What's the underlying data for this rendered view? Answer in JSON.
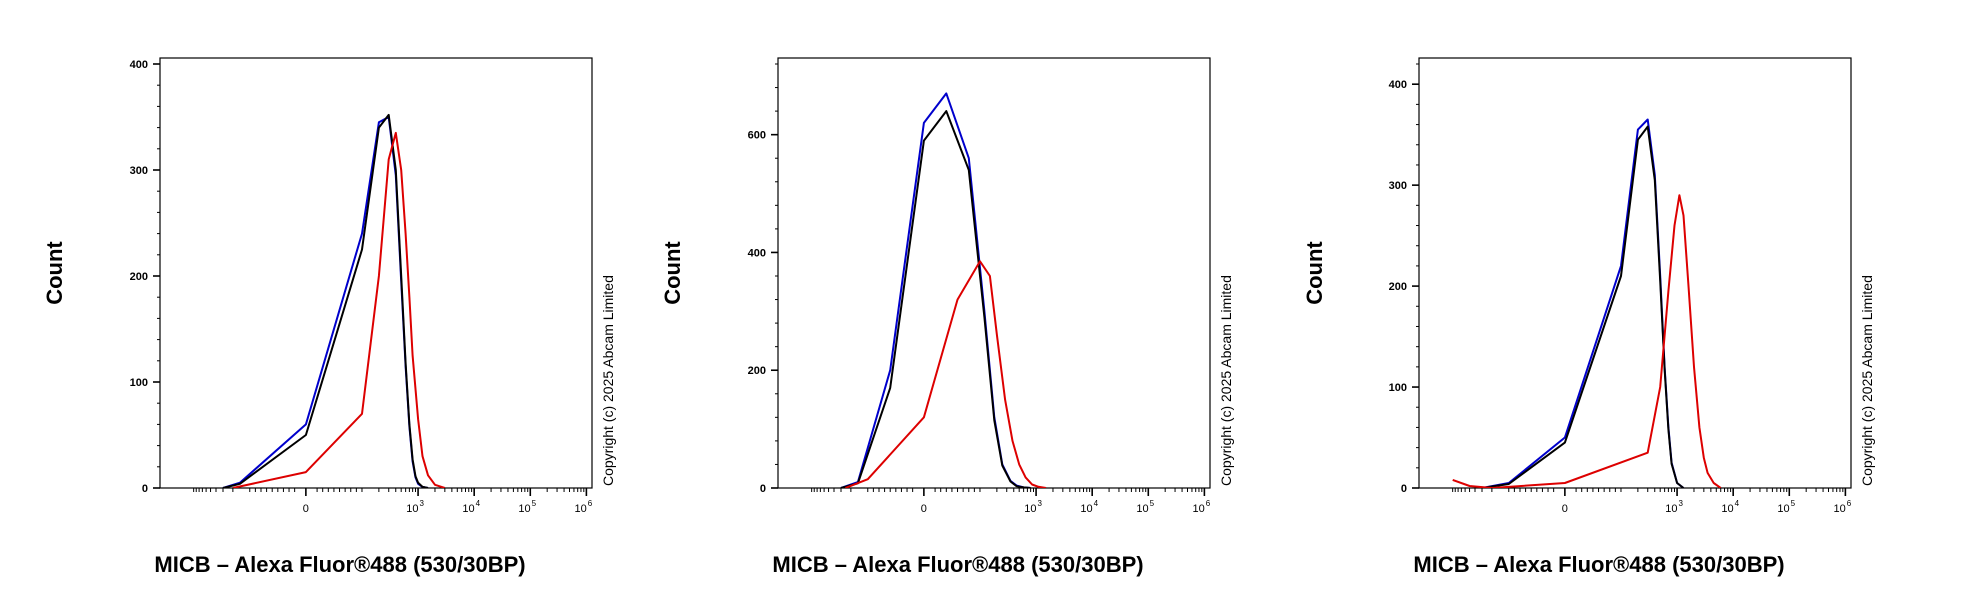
{
  "chart_data": [
    {
      "type": "line",
      "ylabel": "Count",
      "xlabel": "MICB – Alexa Fluor®488 (530/30BP)",
      "copyright": "Copyright (c) 2025 Abcam Limited",
      "x_scale": "biexponential",
      "ylim": [
        0,
        400
      ],
      "yticks": [
        {
          "value": 0,
          "label": "0"
        },
        {
          "value": 100,
          "label": "100"
        },
        {
          "value": 200,
          "label": "200"
        },
        {
          "value": 300,
          "label": "300"
        },
        {
          "value": 400,
          "label": "400"
        }
      ],
      "xticks": [
        {
          "value": 0,
          "base": "0",
          "exp": ""
        },
        {
          "value": 1000,
          "base": "10",
          "exp": "3"
        },
        {
          "value": 10000,
          "base": "10",
          "exp": "4"
        },
        {
          "value": 100000,
          "base": "10",
          "exp": "5"
        },
        {
          "value": 1000000,
          "base": "10",
          "exp": "6"
        }
      ],
      "series": [
        {
          "color": "#0000cc",
          "x": [
            -300,
            -150,
            0,
            100,
            200,
            300,
            400,
            500,
            600,
            700,
            800,
            900,
            1000,
            1200,
            1500
          ],
          "y": [
            0,
            5,
            60,
            240,
            345,
            350,
            295,
            195,
            115,
            58,
            25,
            10,
            4,
            1,
            0
          ]
        },
        {
          "color": "#000000",
          "x": [
            -300,
            -150,
            0,
            100,
            200,
            300,
            400,
            500,
            600,
            700,
            800,
            900,
            1000,
            1200,
            1500
          ],
          "y": [
            0,
            4,
            50,
            225,
            340,
            352,
            300,
            200,
            118,
            60,
            27,
            11,
            5,
            1,
            0
          ]
        },
        {
          "color": "#dd0000",
          "x": [
            -200,
            0,
            100,
            200,
            300,
            400,
            500,
            600,
            700,
            800,
            1000,
            1200,
            1500,
            2000,
            3000
          ],
          "y": [
            0,
            15,
            70,
            200,
            310,
            335,
            300,
            240,
            180,
            125,
            65,
            30,
            12,
            3,
            0
          ]
        }
      ]
    },
    {
      "type": "line",
      "ylabel": "Count",
      "xlabel": "MICB – Alexa Fluor®488 (530/30BP)",
      "copyright": "Copyright (c) 2025 Abcam Limited",
      "x_scale": "biexponential",
      "ylim": [
        0,
        720
      ],
      "yticks": [
        {
          "value": 0,
          "label": "0"
        },
        {
          "value": 200,
          "label": "200"
        },
        {
          "value": 400,
          "label": "400"
        },
        {
          "value": 600,
          "label": "600"
        }
      ],
      "xticks": [
        {
          "value": 0,
          "base": "0",
          "exp": ""
        },
        {
          "value": 1000,
          "base": "10",
          "exp": "3"
        },
        {
          "value": 10000,
          "base": "10",
          "exp": "4"
        },
        {
          "value": 100000,
          "base": "10",
          "exp": "5"
        },
        {
          "value": 1000000,
          "base": "10",
          "exp": "6"
        }
      ],
      "series": [
        {
          "color": "#0000cc",
          "x": [
            -300,
            -150,
            -60,
            0,
            40,
            80,
            120,
            180,
            250,
            350,
            450,
            600,
            800
          ],
          "y": [
            0,
            10,
            200,
            620,
            670,
            560,
            300,
            120,
            40,
            12,
            4,
            1,
            0
          ]
        },
        {
          "color": "#000000",
          "x": [
            -300,
            -150,
            -60,
            0,
            40,
            80,
            120,
            180,
            250,
            350,
            450,
            600,
            800
          ],
          "y": [
            0,
            8,
            170,
            590,
            640,
            540,
            290,
            115,
            38,
            11,
            3,
            1,
            0
          ]
        },
        {
          "color": "#dd0000",
          "x": [
            -250,
            -100,
            0,
            60,
            100,
            150,
            200,
            280,
            380,
            500,
            650,
            850,
            1100,
            1500
          ],
          "y": [
            0,
            15,
            120,
            320,
            385,
            360,
            260,
            150,
            80,
            40,
            18,
            6,
            2,
            0
          ]
        }
      ]
    },
    {
      "type": "line",
      "ylabel": "Count",
      "xlabel": "MICB – Alexa Fluor®488 (530/30BP)",
      "copyright": "Copyright (c) 2025 Abcam Limited",
      "x_scale": "biexponential",
      "ylim": [
        0,
        420
      ],
      "yticks": [
        {
          "value": 0,
          "label": "0"
        },
        {
          "value": 100,
          "label": "100"
        },
        {
          "value": 200,
          "label": "200"
        },
        {
          "value": 300,
          "label": "300"
        },
        {
          "value": 400,
          "label": "400"
        }
      ],
      "xticks": [
        {
          "value": 0,
          "base": "0",
          "exp": ""
        },
        {
          "value": 1000,
          "base": "10",
          "exp": "3"
        },
        {
          "value": 10000,
          "base": "10",
          "exp": "4"
        },
        {
          "value": 100000,
          "base": "10",
          "exp": "5"
        },
        {
          "value": 1000000,
          "base": "10",
          "exp": "6"
        }
      ],
      "series": [
        {
          "color": "#0000cc",
          "x": [
            -300,
            -100,
            0,
            100,
            200,
            300,
            400,
            500,
            600,
            700,
            800,
            1000,
            1300
          ],
          "y": [
            0,
            5,
            50,
            220,
            355,
            365,
            310,
            210,
            120,
            60,
            25,
            5,
            0
          ]
        },
        {
          "color": "#000000",
          "x": [
            -300,
            -100,
            0,
            100,
            200,
            300,
            400,
            500,
            600,
            700,
            800,
            1000,
            1300
          ],
          "y": [
            0,
            4,
            45,
            210,
            345,
            358,
            305,
            205,
            118,
            58,
            24,
            5,
            0
          ]
        },
        {
          "color": "#dd0000",
          "x": [
            -1000,
            -500,
            -200,
            0,
            300,
            500,
            700,
            900,
            1100,
            1300,
            1600,
            2000,
            2500,
            3000,
            3500,
            4500,
            6000
          ],
          "y": [
            8,
            2,
            0,
            5,
            35,
            100,
            195,
            260,
            290,
            270,
            200,
            120,
            60,
            30,
            15,
            5,
            0
          ]
        }
      ]
    }
  ]
}
